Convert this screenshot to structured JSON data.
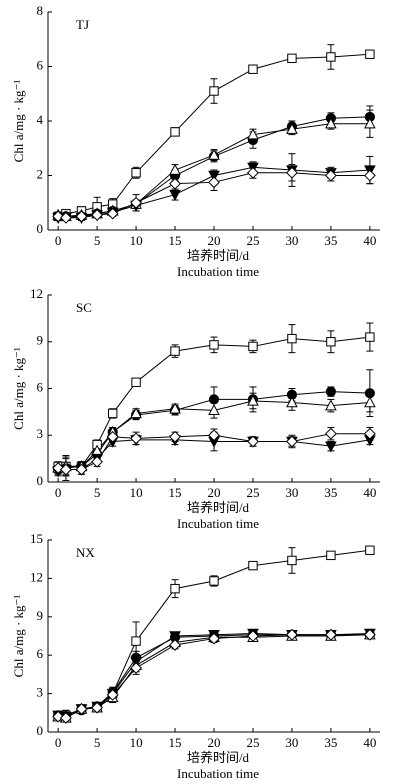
{
  "chart_data": [
    {
      "type": "line",
      "title": "TJ",
      "ylabel": "Chl a/mg · kg⁻¹",
      "xlabel": "培养时间/d",
      "xlabel_en": "Incubation time",
      "x": [
        0,
        1,
        3,
        5,
        7,
        10,
        15,
        20,
        25,
        30,
        35,
        40
      ],
      "xlim": [
        -1.3,
        41.3
      ],
      "xticks": [
        0,
        5,
        10,
        15,
        20,
        25,
        30,
        35,
        40
      ],
      "ylim": [
        0,
        8
      ],
      "yticks": [
        0,
        2,
        4,
        6,
        8
      ],
      "series": [
        {
          "marker": "square",
          "color": "#000000",
          "filled": false,
          "values": [
            0.5,
            0.6,
            0.7,
            0.85,
            0.95,
            2.1,
            3.6,
            5.1,
            5.9,
            6.3,
            6.35,
            6.45
          ],
          "errors": [
            0.1,
            0.1,
            0.15,
            0.35,
            0.2,
            0.2,
            0.15,
            0.45,
            0.1,
            0.1,
            0.45,
            0.1
          ]
        },
        {
          "marker": "circle",
          "color": "#000000",
          "filled": true,
          "values": [
            0.5,
            0.5,
            0.5,
            0.6,
            0.7,
            0.95,
            2.0,
            2.7,
            3.3,
            3.8,
            4.1,
            4.15
          ],
          "errors": [
            0.1,
            0.1,
            0.1,
            0.1,
            0.1,
            0.15,
            0.2,
            0.2,
            0.3,
            0.2,
            0.2,
            0.4
          ]
        },
        {
          "marker": "triangle",
          "color": "#000000",
          "filled": false,
          "values": [
            0.55,
            0.5,
            0.55,
            0.6,
            0.7,
            0.95,
            2.2,
            2.75,
            3.5,
            3.7,
            3.9,
            3.9
          ],
          "errors": [
            0.1,
            0.1,
            0.1,
            0.1,
            0.1,
            0.15,
            0.2,
            0.2,
            0.2,
            0.2,
            0.2,
            0.5
          ]
        },
        {
          "marker": "triangle-down",
          "color": "#000000",
          "filled": true,
          "values": [
            0.45,
            0.45,
            0.45,
            0.55,
            0.65,
            0.9,
            1.3,
            2.0,
            2.3,
            2.2,
            2.1,
            2.2
          ],
          "errors": [
            0.1,
            0.1,
            0.1,
            0.1,
            0.1,
            0.2,
            0.2,
            0.2,
            0.2,
            0.6,
            0.2,
            0.5
          ]
        },
        {
          "marker": "diamond",
          "color": "#000000",
          "filled": false,
          "values": [
            0.5,
            0.45,
            0.5,
            0.55,
            0.6,
            1.0,
            1.7,
            1.75,
            2.1,
            2.1,
            2.0,
            2.0
          ],
          "errors": [
            0.1,
            0.1,
            0.1,
            0.1,
            0.1,
            0.3,
            0.3,
            0.3,
            0.2,
            0.3,
            0.2,
            0.3
          ]
        }
      ]
    },
    {
      "type": "line",
      "title": "SC",
      "ylabel": "Chl a/mg · kg⁻¹",
      "xlabel": "培养时间/d",
      "xlabel_en": "Incubation time",
      "x": [
        0,
        1,
        3,
        5,
        7,
        10,
        15,
        20,
        25,
        30,
        35,
        40
      ],
      "xlim": [
        -1.3,
        41.3
      ],
      "xticks": [
        0,
        5,
        10,
        15,
        20,
        25,
        30,
        35,
        40
      ],
      "ylim": [
        0,
        12
      ],
      "yticks": [
        0,
        3,
        6,
        9,
        12
      ],
      "series": [
        {
          "marker": "square",
          "color": "#000000",
          "filled": false,
          "values": [
            1.0,
            1.0,
            1.0,
            2.4,
            4.4,
            6.4,
            8.4,
            8.8,
            8.7,
            9.2,
            9.0,
            9.3
          ],
          "errors": [
            0.3,
            0.6,
            0.3,
            0.3,
            0.3,
            0.2,
            0.4,
            0.5,
            0.4,
            0.9,
            0.7,
            0.9
          ]
        },
        {
          "marker": "circle",
          "color": "#000000",
          "filled": true,
          "values": [
            0.8,
            0.9,
            1.0,
            1.8,
            3.2,
            4.3,
            4.6,
            5.3,
            5.3,
            5.6,
            5.8,
            5.7
          ],
          "errors": [
            0.3,
            0.8,
            0.3,
            0.3,
            0.3,
            0.3,
            0.3,
            0.8,
            0.8,
            0.4,
            0.3,
            1.5
          ]
        },
        {
          "marker": "triangle",
          "color": "#000000",
          "filled": false,
          "values": [
            0.9,
            1.0,
            1.0,
            2.0,
            3.2,
            4.4,
            4.7,
            4.6,
            5.2,
            5.1,
            4.9,
            5.1
          ],
          "errors": [
            0.3,
            0.5,
            0.3,
            0.3,
            0.3,
            0.3,
            0.3,
            0.5,
            0.5,
            0.5,
            0.4,
            0.6
          ]
        },
        {
          "marker": "triangle-down",
          "color": "#000000",
          "filled": true,
          "values": [
            0.7,
            0.8,
            0.8,
            1.5,
            2.6,
            2.7,
            2.7,
            2.6,
            2.6,
            2.6,
            2.3,
            2.7
          ],
          "errors": [
            0.3,
            0.4,
            0.3,
            0.3,
            0.3,
            0.3,
            0.3,
            0.6,
            0.3,
            0.4,
            0.3,
            0.3
          ]
        },
        {
          "marker": "diamond",
          "color": "#000000",
          "filled": false,
          "values": [
            0.9,
            0.8,
            0.8,
            1.3,
            2.9,
            2.8,
            2.9,
            3.0,
            2.6,
            2.6,
            3.1,
            3.1
          ],
          "errors": [
            0.3,
            0.4,
            0.3,
            0.3,
            0.3,
            0.4,
            0.3,
            0.4,
            0.3,
            0.3,
            0.4,
            0.4
          ]
        }
      ]
    },
    {
      "type": "line",
      "title": "NX",
      "ylabel": "Chl a/mg · kg⁻¹",
      "xlabel": "培养时间/d",
      "xlabel_en": "Incubation time",
      "x": [
        0,
        1,
        3,
        5,
        7,
        10,
        15,
        20,
        25,
        30,
        35,
        40
      ],
      "xlim": [
        -1.3,
        41.3
      ],
      "xticks": [
        0,
        5,
        10,
        15,
        20,
        25,
        30,
        35,
        40
      ],
      "ylim": [
        0,
        15
      ],
      "yticks": [
        0,
        3,
        6,
        9,
        12,
        15
      ],
      "series": [
        {
          "marker": "square",
          "color": "#000000",
          "filled": false,
          "values": [
            1.2,
            1.3,
            1.8,
            1.9,
            3.0,
            7.1,
            11.2,
            11.8,
            13.0,
            13.4,
            13.8,
            14.2
          ],
          "errors": [
            0.3,
            0.4,
            0.2,
            0.2,
            0.3,
            1.5,
            0.7,
            0.4,
            0.2,
            1.0,
            0.2,
            0.2
          ]
        },
        {
          "marker": "circle",
          "color": "#000000",
          "filled": true,
          "values": [
            1.3,
            1.2,
            1.7,
            2.0,
            3.1,
            5.8,
            7.4,
            7.5,
            7.6,
            7.6,
            7.6,
            7.6
          ],
          "errors": [
            0.3,
            0.3,
            0.2,
            0.2,
            0.4,
            0.5,
            0.3,
            0.3,
            0.3,
            0.2,
            0.3,
            0.2
          ]
        },
        {
          "marker": "triangle",
          "color": "#000000",
          "filled": false,
          "values": [
            1.2,
            1.1,
            1.8,
            1.9,
            2.7,
            5.2,
            7.0,
            7.4,
            7.4,
            7.5,
            7.5,
            7.6
          ],
          "errors": [
            0.3,
            0.3,
            0.2,
            0.2,
            0.4,
            0.5,
            0.3,
            0.3,
            0.3,
            0.2,
            0.3,
            0.2
          ]
        },
        {
          "marker": "triangle-down",
          "color": "#000000",
          "filled": true,
          "values": [
            1.3,
            1.2,
            1.8,
            2.0,
            3.0,
            5.5,
            7.5,
            7.6,
            7.7,
            7.6,
            7.6,
            7.7
          ],
          "errors": [
            0.3,
            0.3,
            0.2,
            0.2,
            0.4,
            0.5,
            0.3,
            0.3,
            0.3,
            0.2,
            0.3,
            0.2
          ]
        },
        {
          "marker": "diamond",
          "color": "#000000",
          "filled": false,
          "values": [
            1.2,
            1.1,
            1.8,
            1.9,
            2.9,
            5.0,
            6.8,
            7.3,
            7.5,
            7.6,
            7.6,
            7.6
          ],
          "errors": [
            0.3,
            0.3,
            0.2,
            0.2,
            0.4,
            0.5,
            0.3,
            0.3,
            0.3,
            0.2,
            0.3,
            0.2
          ]
        }
      ]
    }
  ]
}
